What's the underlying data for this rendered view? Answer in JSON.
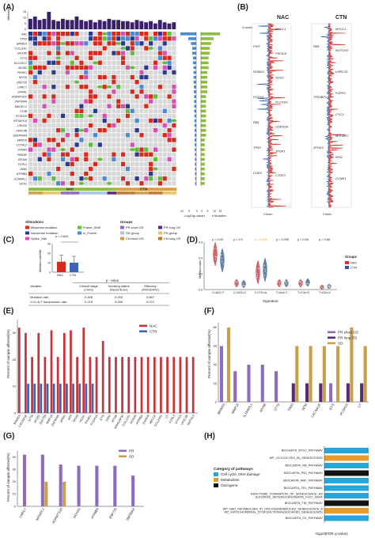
{
  "panels": {
    "A": {
      "letter": "(A)",
      "ylabel_top": "#Mutation",
      "top_ticks": [
        "15",
        "10",
        "5",
        "0"
      ],
      "genes": [
        "RB1",
        "TP53",
        "BRWD3",
        "COL11A1",
        "HOXA5",
        "STT5",
        "SLCO1C1",
        "MCM2",
        "PKHD1",
        "MYH6",
        "ZNF729",
        "LRRC7",
        "GFRAL",
        "ADAMTS20",
        "ZNF804A",
        "MAGEC1",
        "F13B",
        "PCDH15",
        "KRTAP4-8",
        "USH2A",
        "LRRC4B",
        "SERPINA4",
        "MMP16",
        "CCT8L2",
        "STAM3",
        "PDE9H",
        "ZFH4A",
        "FCRL3",
        "DIM3",
        "ATP8B4",
        "IL1RAPL1",
        "HCN1"
      ],
      "pvalue_label": "-Log10(p-value)",
      "pvalue_ticks": [
        "10",
        "5",
        "0"
      ],
      "mut_label": "# Mutation",
      "mut_ticks": [
        "0",
        "5",
        "10",
        "15"
      ],
      "group_labels": [
        "NAC",
        "CTN"
      ],
      "legend_alterations_title": "Alterations",
      "legend_alterations": [
        "Missense mutation",
        "Nonsense mutation",
        "Splice_Site",
        "Frame_Shift",
        "In_Frame"
      ],
      "legend_groups_title": "Groups",
      "legend_groups": [
        "PR short OS",
        "SD group",
        "CN short OS",
        "PR long OS",
        "PD group",
        "CN long OS"
      ],
      "colors": {
        "missense": "#d62a1e",
        "nonsense": "#2a3a8f",
        "splice": "#d64fb5",
        "frame_shift": "#5dbf3a",
        "in_frame": "#4a8ad4",
        "nac": "#8dbf3c",
        "ctn": "#e49a40",
        "pr_short": "#8e6bbf",
        "sd": "#a8c6e8",
        "cn_short": "#c9a04a",
        "pr_long": "#5a2a7a",
        "pd": "#e6c36a",
        "cn_long": "#c0762d",
        "bar": "#3a1f6b",
        "empty": "#d8d8d8"
      }
    },
    "B": {
      "letter": "(B)",
      "titles": [
        "NAC",
        "CTN"
      ],
      "gscore_label": "G-score",
      "xlabel": "Chrom",
      "nac_left_labels": [
        "FHIT",
        "ROBO1",
        "PCDH1",
        "RB1",
        "TP53",
        "CHD3"
      ],
      "nac_right_labels": [
        "MYCL1",
        "PIK3CA",
        "SOX2",
        "PLCXD3",
        "CDKN2A",
        "TFDP1",
        "CTDP1"
      ],
      "ctn_left_labels": [
        "RB1",
        "TP53BP1",
        "ZFHX3"
      ],
      "ctn_right_labels": [
        "MYCL1",
        "NOTCH2",
        "LRRC15",
        "FGFR1",
        "CYC1",
        "MYCBP2",
        "IRS2",
        "CCNE1"
      ]
    },
    "C": {
      "letter": "(C)",
      "ylabel": "Mutation rate/Mb",
      "p_text": "p = 0.843",
      "yticks": [
        "0",
        "10",
        "20",
        "30"
      ],
      "xticks": [
        "NAC",
        "CTN"
      ],
      "values": {
        "NAC": 11,
        "CTN": 10
      },
      "table": {
        "p_header": "p - value",
        "headers": [
          "Variable",
          "Clinical stage (I-II/III)",
          "Smoking status (Never/Ever)",
          "Effecacy (PR/SD/PD)"
        ],
        "rows": [
          [
            "Mutation rate",
            "0.465",
            "0.250",
            "0.667"
          ],
          [
            "C:G>A:T transversion rate",
            "0.215",
            "0.099",
            "0.072"
          ]
        ]
      }
    },
    "D": {
      "letter": "(D)",
      "ylabel": "Mutation ratio",
      "xlabel": "Signature",
      "categories": [
        "C>A/G>T",
        "C>G/G>C",
        "C>T/G>A",
        "T>A/A>T",
        "T>C/A>G",
        "T>G/A>C"
      ],
      "pvalues": [
        "p = 0.09",
        "p = 0.9",
        "p = 0.011",
        "p = 0.099",
        "p = 0.54",
        "p = 0.68"
      ],
      "yticks": [
        "0.0",
        "0.2",
        "0.4",
        "0.6"
      ],
      "legend_title": "Groups",
      "legend": [
        "NAC",
        "CTN"
      ],
      "colors": {
        "nac": "#c8323a",
        "ctn": "#2f5a8f",
        "sig": "#e49a20"
      }
    },
    "E": {
      "letter": "(E)",
      "ylabel": "Percent of sample affected(%)",
      "yticks": [
        "0",
        "10",
        "20",
        "30"
      ],
      "legend": [
        "NAC",
        "CTN"
      ],
      "colors": {
        "nac": "#c8323a",
        "ctn": "#3f63b5"
      }
    },
    "F": {
      "letter": "(F)",
      "ylabel": "Percent of sample affected(%)",
      "yticks": [
        "0",
        "20",
        "40",
        "60",
        "80"
      ],
      "legend": [
        "PR short OS",
        "PR long OS",
        "SD"
      ],
      "colors": {
        "pr_short": "#8e6bbf",
        "pr_long": "#5a2a7a",
        "sd": "#c9a04a"
      }
    },
    "G": {
      "letter": "(G)",
      "ylabel": "Percent of sample affected(%)",
      "yticks": [
        "0",
        "10",
        "20",
        "30",
        "40"
      ],
      "legend": [
        "PR",
        "SD"
      ],
      "colors": {
        "pr": "#8e6bbf",
        "sd": "#c9a04a"
      }
    },
    "H": {
      "letter": "(H)",
      "pathways": [
        "BIOCARTA_BTG2_PATHWAY",
        "WP_GLYCOLYSIS_IN_SENESCENCE",
        "BIOCARTA_RB_PATHWAY",
        "BIOCARTA_P53_PATHWAY",
        "BIOCARTA_ARF_PATHWAY",
        "BIOCARTA_TEL_PATHWAY",
        "REACTOME_FORMATION_OF_SENESCENCE_ASSOCIATED_HETEROCHROMATIN_FOCI_SAHF",
        "BIOCARTA_TID_PATHWAY",
        "WP_NAD_METABOLISM_IN_ONCOGENEINDUCED_SENESCENCE_AND_MITOCHONDRIAL_DYSFUNCTIONASSOCIATED_SENESCENCE",
        "BIOCARTA_G1_PATHWAY"
      ],
      "legend_title": "Category of pathways",
      "legend": [
        "Cell cycle, DNA damage",
        "Metabolism",
        "Oncogenic"
      ],
      "xlabel": "-log10(FDR q-value)",
      "colors": {
        "cell": "#27a7d8",
        "metab": "#e89a2a",
        "onco": "#111111"
      }
    }
  },
  "chart_data": [
    {
      "type": "bar",
      "title": "(E)",
      "ylabel": "Percent of sample affected(%)",
      "ylim": [
        0,
        35
      ],
      "categories": [
        "BRWD3",
        "CACNA1E",
        "STT6",
        "MCM2",
        "ZNF729",
        "MMP16",
        "ZNF804A",
        "GRM1",
        "AFA",
        "TATA3",
        "HCN1",
        "PKHD1",
        "PCDH15",
        "EYS",
        "DIM3",
        "MYH6",
        "ARHGAP30",
        "COL11A1",
        "HOXA5",
        "ATP8B4",
        "ZNF676",
        "ABCG2",
        "COL22A1",
        "CT",
        "FCRL3",
        "MYH15",
        "VPS13B",
        "SMTNL2"
      ],
      "series": [
        {
          "name": "NAC",
          "values": [
            32,
            30,
            21,
            30,
            21,
            31,
            21,
            30,
            31,
            21,
            32,
            21,
            21,
            27,
            21,
            21,
            21,
            21,
            21,
            21,
            21,
            21,
            21,
            21,
            21,
            21,
            21,
            21
          ]
        },
        {
          "name": "CTN",
          "values": [
            0,
            11,
            11,
            11,
            11,
            11,
            11,
            11,
            11,
            11,
            11,
            11,
            0,
            0,
            0,
            0,
            0,
            0,
            0,
            0,
            0,
            0,
            0,
            0,
            0,
            0,
            0,
            0
          ]
        }
      ]
    },
    {
      "type": "bar",
      "title": "(F)",
      "ylabel": "Percent of sample affected(%)",
      "ylim": [
        0,
        85
      ],
      "categories": [
        "BRWD3",
        "MMP16",
        "IL1RAPL1",
        "MYH6",
        "STT6",
        "DIM3",
        "NTM",
        "CACNA1E",
        "EYS",
        "PCDH15",
        "CT"
      ],
      "series": [
        {
          "name": "PR short OS",
          "values": [
            60,
            33,
            40,
            40,
            33,
            0,
            0,
            0,
            20,
            0,
            0
          ]
        },
        {
          "name": "PR long OS",
          "values": [
            0,
            0,
            0,
            0,
            0,
            20,
            20,
            20,
            0,
            20,
            20
          ]
        },
        {
          "name": "SD",
          "values": [
            80,
            0,
            0,
            0,
            0,
            60,
            60,
            60,
            60,
            80,
            60
          ]
        }
      ]
    },
    {
      "type": "bar",
      "title": "(G)",
      "ylabel": "Percent of sample affected(%)",
      "ylim": [
        0,
        45
      ],
      "categories": [
        "LRRC7",
        "MAGEC1",
        "ADAMTS20",
        "HOXA5",
        "ATP8B4",
        "ZNF729",
        "ZNF804A"
      ],
      "series": [
        {
          "name": "PR",
          "values": [
            42,
            42,
            34,
            33,
            33,
            33,
            25
          ]
        },
        {
          "name": "SD",
          "values": [
            0,
            20,
            20,
            0,
            0,
            0,
            0
          ]
        }
      ]
    },
    {
      "type": "bar",
      "title": "(H)",
      "xlabel": "-log10(FDR q-value)",
      "categories": [
        "BIOCARTA_BTG2_PATHWAY",
        "WP_GLYCOLYSIS_IN_SENESCENCE",
        "BIOCARTA_RB_PATHWAY",
        "BIOCARTA_P53_PATHWAY",
        "BIOCARTA_ARF_PATHWAY",
        "BIOCARTA_TEL_PATHWAY",
        "REACTOME_FORMATION_OF_SENESCENCE_ASSOCIATED_HETEROCHROMATIN_FOCI_SAHF",
        "BIOCARTA_TID_PATHWAY",
        "WP_NAD_METABOLISM_IN_ONCOGENEINDUCED_SENESCENCE_AND_MITOCHONDRIAL_DYSFUNCTIONASSOCIATED_SENESCENCE",
        "BIOCARTA_G1_PATHWAY"
      ],
      "values": [
        1,
        1,
        1,
        1,
        1,
        1,
        1,
        1,
        1,
        1
      ],
      "categories_group": [
        "Cell cycle, DNA damage",
        "Metabolism",
        "Cell cycle, DNA damage",
        "Oncogenic",
        "Cell cycle, DNA damage",
        "Cell cycle, DNA damage",
        "Cell cycle, DNA damage",
        "Oncogenic",
        "Metabolism",
        "Cell cycle, DNA damage"
      ]
    }
  ]
}
